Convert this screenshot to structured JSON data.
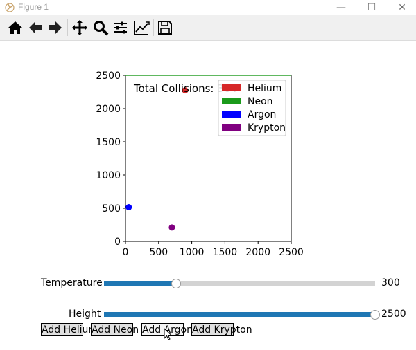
{
  "window": {
    "title": "Figure 1",
    "minimize": "—",
    "maximize": "☐",
    "close": "✕"
  },
  "toolbar": {
    "tools": [
      {
        "name": "home-icon"
      },
      {
        "name": "back-arrow-icon"
      },
      {
        "name": "forward-arrow-icon"
      },
      {
        "name": "pan-icon"
      },
      {
        "name": "zoom-icon"
      },
      {
        "name": "configure-subplots-icon"
      },
      {
        "name": "edit-axis-icon"
      },
      {
        "name": "save-icon"
      }
    ]
  },
  "annotation": {
    "text": "Total Collisions: 364"
  },
  "chart_data": {
    "type": "scatter",
    "xlim": [
      0,
      2500
    ],
    "ylim": [
      0,
      2500
    ],
    "xticks": [
      "0",
      "500",
      "1000",
      "1500",
      "2000",
      "2500"
    ],
    "yticks": [
      "0",
      "500",
      "1000",
      "1500",
      "2000",
      "2500"
    ],
    "series": [
      {
        "name": "Helium",
        "color": "#d62728",
        "points": [
          [
            900,
            2275
          ]
        ]
      },
      {
        "name": "Neon",
        "color": "#2ca02c",
        "points": []
      },
      {
        "name": "Argon",
        "color": "#0000ff",
        "points": [
          [
            50,
            515
          ]
        ]
      },
      {
        "name": "Krypton",
        "color": "#800080",
        "points": [
          [
            700,
            210
          ]
        ]
      }
    ],
    "legend": [
      "Helium",
      "Neon",
      "Argon",
      "Krypton"
    ],
    "legend_colors": [
      "#d62728",
      "#1a9a1a",
      "#0000ff",
      "#800080"
    ],
    "legend_position": "top-right"
  },
  "sliders": {
    "temperature": {
      "label": "Temperature",
      "value": "300",
      "fraction": 0.265
    },
    "height": {
      "label": "Height",
      "value": "2500",
      "fraction": 1.0
    }
  },
  "buttons": {
    "add_helium": "Add Helium",
    "add_neon": "Add Neon",
    "add_argon": "Add Argon",
    "add_krypton": "Add Krypton"
  }
}
